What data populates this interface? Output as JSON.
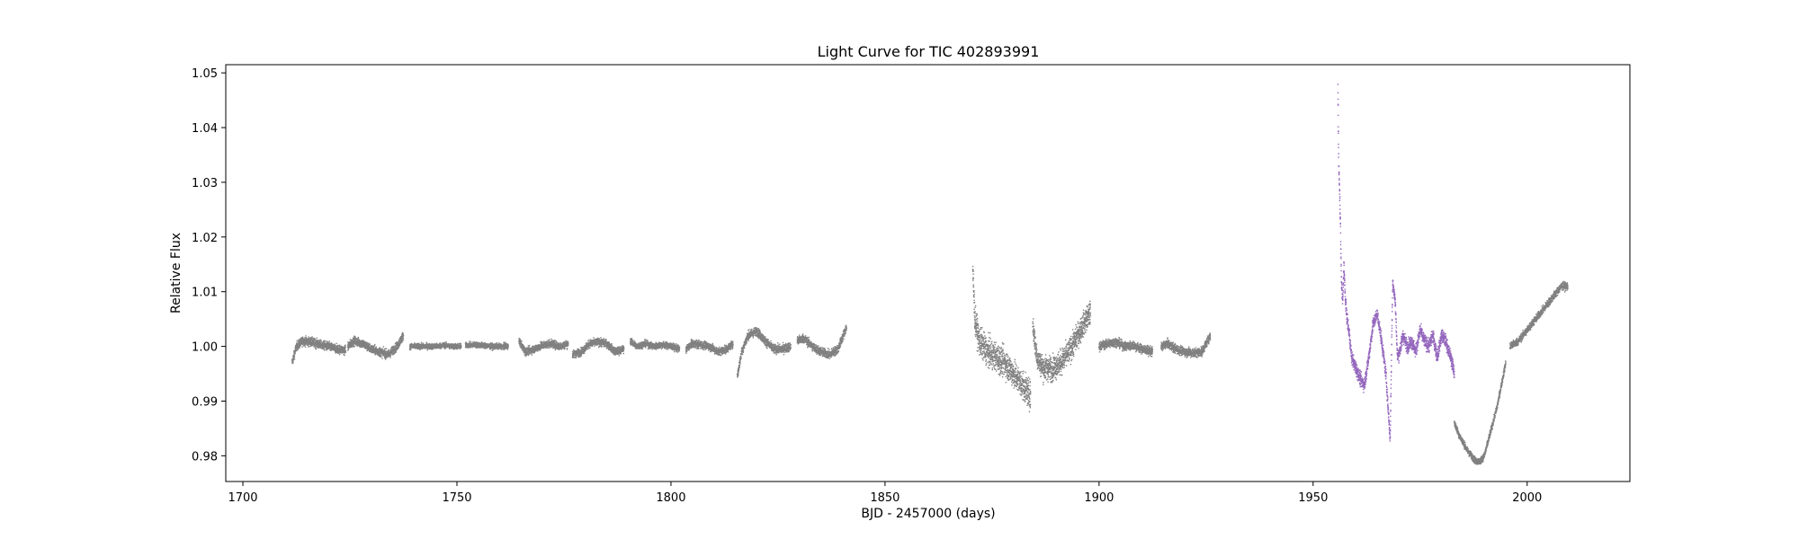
{
  "chart_data": {
    "type": "scatter",
    "title": "Light Curve for TIC 402893991",
    "xlabel": "BJD - 2457000 (days)",
    "ylabel": "Relative Flux",
    "xlim": [
      1696,
      2024
    ],
    "ylim": [
      0.9753,
      1.0515
    ],
    "x_ticks": [
      1700,
      1750,
      1800,
      1850,
      1900,
      1950,
      2000
    ],
    "y_ticks": [
      0.98,
      0.99,
      1.0,
      1.01,
      1.02,
      1.03,
      1.04,
      1.05
    ],
    "x_tick_labels": [
      "1700",
      "1750",
      "1800",
      "1850",
      "1900",
      "1950",
      "2000"
    ],
    "y_tick_labels": [
      "0.98",
      "0.99",
      "1.00",
      "1.01",
      "1.02",
      "1.03",
      "1.04",
      "1.05"
    ],
    "grid": false,
    "series": [
      {
        "color": "#808080",
        "segments": [
          {
            "x": [
              1711.5,
              1712.5,
              1714,
              1716,
              1718,
              1720,
              1722,
              1724
            ],
            "y": [
              0.997,
              1.0,
              1.001,
              1.0008,
              1.0003,
              1.0,
              0.9995,
              0.9993
            ],
            "noise": 0.0008
          },
          {
            "x": [
              1724.5,
              1726,
              1728,
              1730,
              1732,
              1734,
              1736,
              1737.5
            ],
            "y": [
              1.0,
              1.001,
              1.0005,
              0.9995,
              0.999,
              0.9985,
              1.0,
              1.002
            ],
            "noise": 0.0008
          },
          {
            "x": [
              1739,
              1741,
              1743,
              1745,
              1747,
              1749,
              1751
            ],
            "y": [
              1.0,
              1.0,
              1.0,
              1.0,
              1.0002,
              1.0,
              1.0
            ],
            "noise": 0.0005
          },
          {
            "x": [
              1752,
              1754,
              1756,
              1758,
              1760,
              1762
            ],
            "y": [
              1.0002,
              1.0003,
              1.0002,
              1.0,
              1.0,
              1.0
            ],
            "noise": 0.0005
          },
          {
            "x": [
              1764.5,
              1766,
              1768,
              1770,
              1772,
              1774,
              1776
            ],
            "y": [
              1.001,
              0.999,
              0.9995,
              1.0002,
              1.0005,
              1.0,
              1.0005
            ],
            "noise": 0.0007
          },
          {
            "x": [
              1777,
              1779,
              1781,
              1783,
              1785,
              1787,
              1789
            ],
            "y": [
              0.9985,
              0.999,
              1.0005,
              1.0008,
              1.0005,
              0.999,
              0.9995
            ],
            "noise": 0.0007
          },
          {
            "x": [
              1790.5,
              1792,
              1794,
              1796,
              1798,
              1800,
              1802
            ],
            "y": [
              1.001,
              1.0,
              1.0005,
              1.0,
              1.0003,
              1.0,
              0.9995
            ],
            "noise": 0.0006
          },
          {
            "x": [
              1803.5,
              1805,
              1807,
              1809,
              1811,
              1813,
              1814.5
            ],
            "y": [
              0.9995,
              1.0005,
              1.0003,
              1.0,
              0.999,
              0.9995,
              1.0005
            ],
            "noise": 0.0007
          },
          {
            "x": [
              1815.5,
              1816.5,
              1818,
              1820,
              1822,
              1824,
              1826,
              1828
            ],
            "y": [
              0.9945,
              0.999,
              1.002,
              1.0028,
              1.001,
              0.9995,
              0.9995,
              1.0
            ],
            "noise": 0.0008
          },
          {
            "x": [
              1829.5,
              1831,
              1833,
              1835,
              1837,
              1839,
              1841
            ],
            "y": [
              1.001,
              1.0015,
              1.0,
              0.999,
              0.9985,
              0.9995,
              1.0035
            ],
            "noise": 0.0008
          },
          {
            "x": [
              1870.5,
              1871,
              1872,
              1874,
              1876,
              1878,
              1880,
              1882,
              1884
            ],
            "y": [
              1.014,
              1.005,
              1.001,
              0.999,
              0.998,
              0.997,
              0.995,
              0.993,
              0.991
            ],
            "noise": 0.0025
          },
          {
            "x": [
              1884.5,
              1885.5,
              1887,
              1889,
              1891,
              1893,
              1895,
              1897,
              1898
            ],
            "y": [
              1.004,
              0.998,
              0.996,
              0.996,
              0.997,
              0.999,
              1.002,
              1.005,
              1.006
            ],
            "noise": 0.0022
          },
          {
            "x": [
              1900,
              1902,
              1904,
              1906,
              1908,
              1910,
              1912.5
            ],
            "y": [
              1.0,
              1.0005,
              1.0008,
              1.0,
              1.0002,
              0.9995,
              0.999
            ],
            "noise": 0.0008
          },
          {
            "x": [
              1914.5,
              1916,
              1918,
              1920,
              1922,
              1924,
              1926
            ],
            "y": [
              1.0,
              1.0005,
              0.9995,
              0.999,
              0.9988,
              0.999,
              1.002
            ],
            "noise": 0.0008
          },
          {
            "x": [
              1983,
              1984,
              1985,
              1986,
              1987,
              1988,
              1989,
              1990,
              1991,
              1992,
              1993,
              1994,
              1995
            ],
            "y": [
              0.986,
              0.984,
              0.9825,
              0.981,
              0.98,
              0.979,
              0.979,
              0.98,
              0.983,
              0.986,
              0.989,
              0.993,
              0.997
            ],
            "noise": 0.0006
          },
          {
            "x": [
              1996,
              1998,
              2000,
              2002,
              2004,
              2006,
              2008,
              2009.5
            ],
            "y": [
              1.0,
              1.001,
              1.003,
              1.005,
              1.007,
              1.009,
              1.011,
              1.011
            ],
            "noise": 0.0007
          }
        ]
      },
      {
        "color": "#9467bd",
        "segments": [
          {
            "x": [
              1955.8,
              1955.9,
              1956.0,
              1956.2,
              1956.4,
              1956.6,
              1956.9,
              1957.2,
              1957.5,
              1957.8,
              1958.1,
              1958.5,
              1959,
              1960,
              1961,
              1962,
              1963,
              1964,
              1965,
              1966,
              1967,
              1968,
              1968.6,
              1969.2,
              1969.7,
              1970.2,
              1971,
              1972,
              1973,
              1974,
              1975,
              1976,
              1977,
              1978,
              1979,
              1980,
              1981,
              1982.5,
              1983
            ],
            "y": [
              1.048,
              1.04,
              1.033,
              1.028,
              1.022,
              1.012,
              1.008,
              1.015,
              1.009,
              1.006,
              1.004,
              1.002,
              0.998,
              0.996,
              0.994,
              0.993,
              0.998,
              1.004,
              1.006,
              1.001,
              0.995,
              0.983,
              1.012,
              1.008,
              0.998,
              0.999,
              1.002,
              1.0,
              1.001,
              0.999,
              1.003,
              1.001,
              1.0,
              1.002,
              0.998,
              1.002,
              1.001,
              0.997,
              0.995
            ],
            "noise": 0.0012
          }
        ]
      }
    ]
  }
}
